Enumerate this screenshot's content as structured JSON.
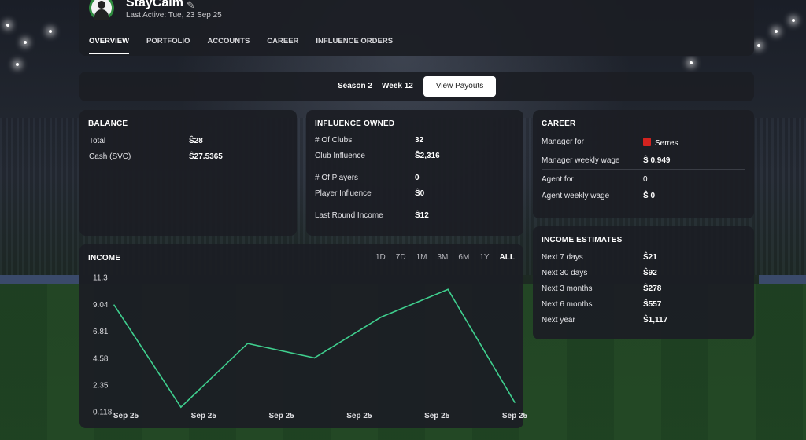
{
  "header": {
    "user_name": "StayCalm",
    "last_active": "Last Active: Tue, 23 Sep 25",
    "tabs": [
      {
        "label": "OVERVIEW",
        "active": true
      },
      {
        "label": "PORTFOLIO"
      },
      {
        "label": "ACCOUNTS"
      },
      {
        "label": "CAREER"
      },
      {
        "label": "INFLUENCE ORDERS"
      }
    ]
  },
  "season_bar": {
    "season": "Season 2",
    "week": "Week 12",
    "payouts_button": "View Payouts"
  },
  "balance": {
    "title": "BALANCE",
    "rows": [
      {
        "label": "Total",
        "value": "Ŝ28"
      },
      {
        "label": "Cash (SVC)",
        "value": "Ŝ27.5365"
      }
    ]
  },
  "influence": {
    "title": "INFLUENCE OWNED",
    "rows": [
      {
        "label": "# Of Clubs",
        "value": "32"
      },
      {
        "label": "Club Influence",
        "value": "Ŝ2,316"
      },
      {
        "label": "# Of Players",
        "value": "0"
      },
      {
        "label": "Player Influence",
        "value": "Ŝ0"
      },
      {
        "label": "Last Round Income",
        "value": "Ŝ12"
      }
    ]
  },
  "career": {
    "title": "CAREER",
    "rows": [
      {
        "label": "Manager for",
        "value": "Serres",
        "icon": "club-shirt-icon"
      },
      {
        "label": "Manager weekly wage",
        "value": "Ŝ 0.949"
      },
      {
        "label": "Agent for",
        "value": "0"
      },
      {
        "label": "Agent weekly wage",
        "value": "Ŝ 0"
      }
    ]
  },
  "estimates": {
    "title": "INCOME ESTIMATES",
    "rows": [
      {
        "label": "Next 7 days",
        "value": "Ŝ21"
      },
      {
        "label": "Next 30 days",
        "value": "Ŝ92"
      },
      {
        "label": "Next 3 months",
        "value": "Ŝ278"
      },
      {
        "label": "Next 6 months",
        "value": "Ŝ557"
      },
      {
        "label": "Next year",
        "value": "Ŝ1,117"
      }
    ]
  },
  "income": {
    "title": "INCOME",
    "ranges": [
      "1D",
      "7D",
      "1M",
      "3M",
      "6M",
      "1Y",
      "ALL"
    ],
    "active_range": "ALL"
  },
  "colors": {
    "line": "#3fcf8e",
    "accent": "#ffffff",
    "club": "#d3231f"
  },
  "chart_data": {
    "type": "line",
    "title": "INCOME",
    "y_ticks": [
      "11.3",
      "9.04",
      "6.81",
      "4.58",
      "2.35",
      "0.118"
    ],
    "ylim": [
      0.118,
      11.3
    ],
    "x_tick_labels": [
      "Sep 25",
      "Sep 25",
      "Sep 25",
      "Sep 25",
      "Sep 25",
      "Sep 25"
    ],
    "series": [
      {
        "values": [
          9.0,
          0.5,
          5.8,
          4.6,
          8.0,
          10.3,
          0.9
        ]
      }
    ]
  }
}
